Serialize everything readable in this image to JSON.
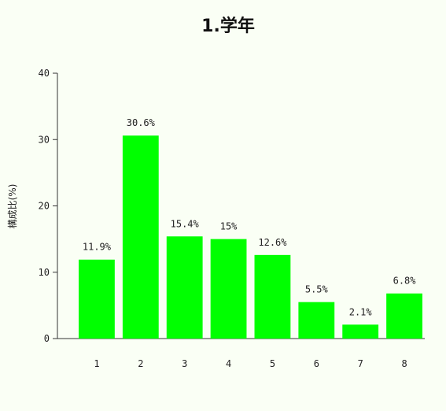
{
  "chart_data": {
    "type": "bar",
    "title": "1.学年",
    "xlabel": "",
    "ylabel": "構成比(%)",
    "categories": [
      "1",
      "2",
      "3",
      "4",
      "5",
      "6",
      "7",
      "8"
    ],
    "values": [
      11.9,
      30.6,
      15.4,
      15,
      12.6,
      5.5,
      2.1,
      6.8
    ],
    "value_labels": [
      "11.9%",
      "30.6%",
      "15.4%",
      "15%",
      "12.6%",
      "5.5%",
      "2.1%",
      "6.8%"
    ],
    "ylim": [
      0,
      40
    ],
    "yticks": [
      0,
      10,
      20,
      30,
      40
    ],
    "grid": false,
    "legend": "none",
    "bar_color": "#00ff00"
  }
}
